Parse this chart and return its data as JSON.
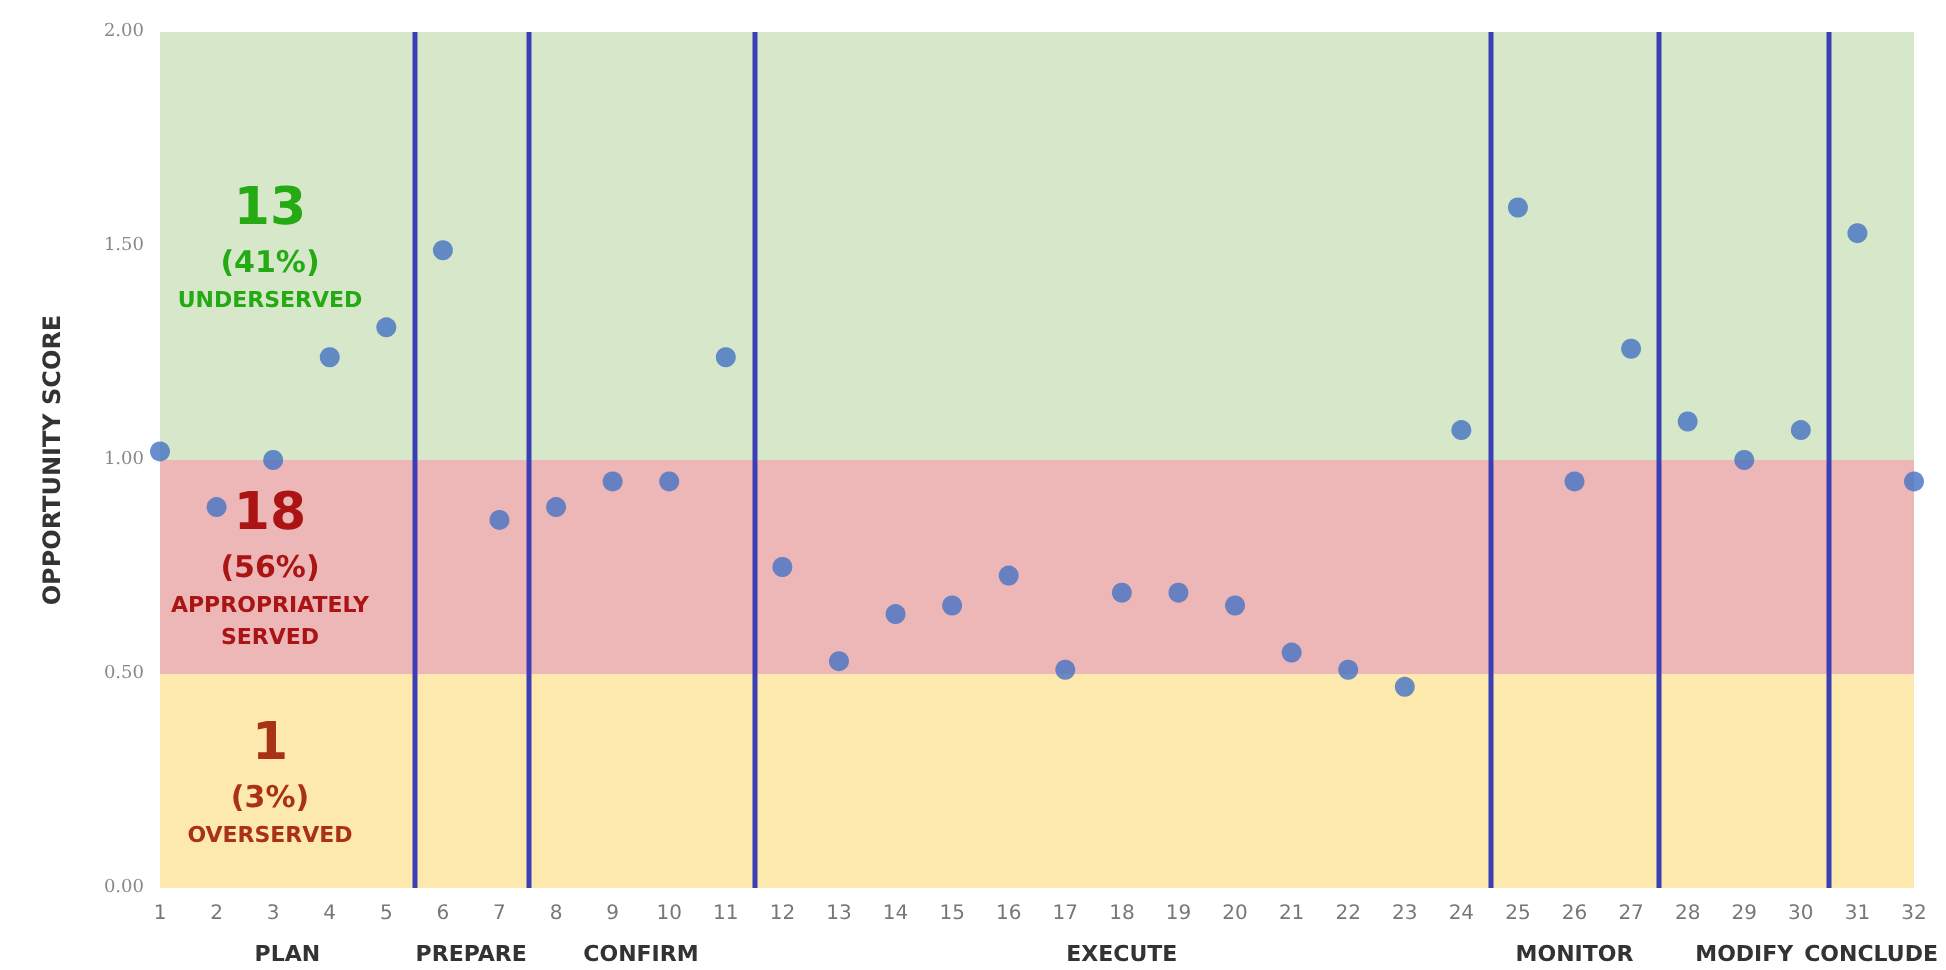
{
  "chart_data": {
    "type": "scatter",
    "ylabel": "OPPORTUNITY SCORE",
    "x": [
      1,
      2,
      3,
      4,
      5,
      6,
      7,
      8,
      9,
      10,
      11,
      12,
      13,
      14,
      15,
      16,
      17,
      18,
      19,
      20,
      21,
      22,
      23,
      24,
      25,
      26,
      27,
      28,
      29,
      30,
      31,
      32
    ],
    "series": [
      {
        "color": "#4472c4",
        "values": [
          1.02,
          0.89,
          1.0,
          1.24,
          1.31,
          1.49,
          0.86,
          0.89,
          0.95,
          0.95,
          1.24,
          0.75,
          0.53,
          0.64,
          0.66,
          0.73,
          0.51,
          0.69,
          0.69,
          0.66,
          0.55,
          0.51,
          0.47,
          1.07,
          1.59,
          0.95,
          1.26,
          1.09,
          1.0,
          1.07,
          1.53,
          0.95
        ]
      }
    ],
    "xlim": [
      1,
      32
    ],
    "xticks": [
      1,
      2,
      3,
      4,
      5,
      6,
      7,
      8,
      9,
      10,
      11,
      12,
      13,
      14,
      15,
      16,
      17,
      18,
      19,
      20,
      21,
      22,
      23,
      24,
      25,
      26,
      27,
      28,
      29,
      30,
      31,
      32
    ],
    "ylim": [
      0,
      2
    ],
    "yticks": [
      {
        "value": 0,
        "label": "0.00"
      },
      {
        "value": 0.5,
        "label": "0.50"
      },
      {
        "value": 1,
        "label": "1.00"
      },
      {
        "value": 1.5,
        "label": "1.50"
      },
      {
        "value": 2,
        "label": "2.00"
      }
    ],
    "bands": [
      {
        "axis": "y",
        "from": 1,
        "to": 2,
        "label": "13\n(41%)\nUNDERSERVED",
        "color": "#d6e8c9"
      },
      {
        "axis": "y",
        "from": 0.5,
        "to": 1,
        "label": "18\n(56%)\nAPPROPRIATELY\nSERVED",
        "color": "#eeb7b7"
      },
      {
        "axis": "y",
        "from": 0,
        "to": 0.5,
        "label": "1\n(3%)\nOVERSERVED",
        "color": "#fde9ad"
      }
    ],
    "annotations": [
      "PLAN",
      "PREPARE",
      "CONFIRM",
      "EXECUTE",
      "MONITOR",
      "MODIFY",
      "CONCLUDE"
    ],
    "ref_lines": [
      {
        "axis": "x",
        "value": 5.5,
        "color": "#3b3fb5"
      },
      {
        "axis": "x",
        "value": 7.5,
        "color": "#3b3fb5"
      },
      {
        "axis": "x",
        "value": 11.5,
        "color": "#3b3fb5"
      },
      {
        "axis": "x",
        "value": 24.5,
        "color": "#3b3fb5"
      },
      {
        "axis": "x",
        "value": 27.5,
        "color": "#3b3fb5"
      },
      {
        "axis": "x",
        "value": 30.5,
        "color": "#3b3fb5"
      }
    ],
    "grid": false,
    "marker": "circle"
  }
}
